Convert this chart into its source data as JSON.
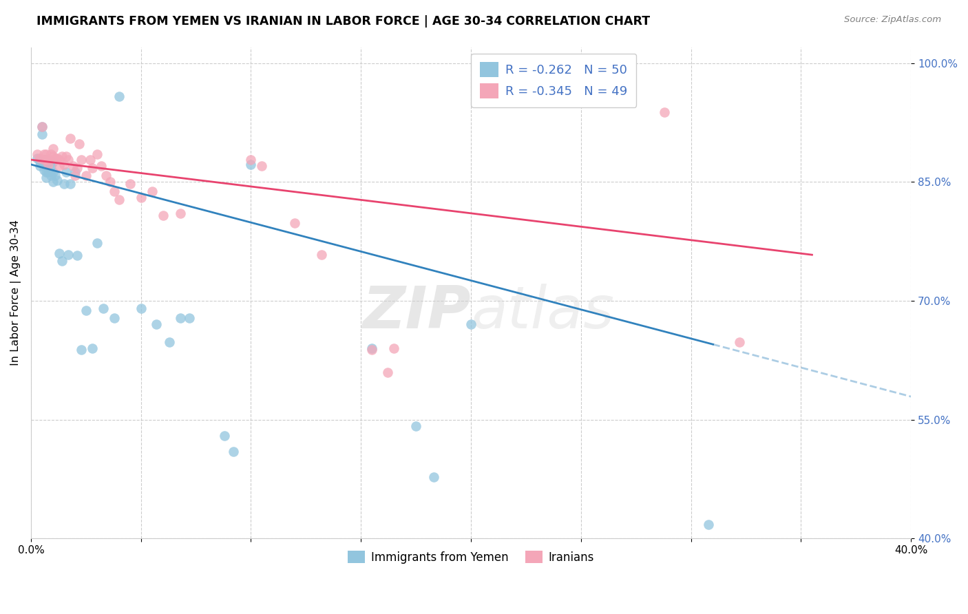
{
  "title": "IMMIGRANTS FROM YEMEN VS IRANIAN IN LABOR FORCE | AGE 30-34 CORRELATION CHART",
  "source": "Source: ZipAtlas.com",
  "ylabel": "In Labor Force | Age 30-34",
  "xlim": [
    0.0,
    0.4
  ],
  "ylim": [
    0.4,
    1.02
  ],
  "yticks": [
    0.4,
    0.55,
    0.7,
    0.85,
    1.0
  ],
  "xticks": [
    0.0,
    0.05,
    0.1,
    0.15,
    0.2,
    0.25,
    0.3,
    0.35,
    0.4
  ],
  "legend_r_blue": "-0.262",
  "legend_n_blue": "50",
  "legend_r_pink": "-0.345",
  "legend_n_pink": "49",
  "blue_color": "#92c5de",
  "pink_color": "#f4a6b8",
  "blue_line_color": "#3182bd",
  "pink_line_color": "#e8436e",
  "blue_line_x0": 0.0,
  "blue_line_y0": 0.872,
  "blue_line_x1": 0.31,
  "blue_line_y1": 0.645,
  "blue_line_solid_end": 0.31,
  "blue_line_dash_end": 0.4,
  "pink_line_x0": 0.0,
  "pink_line_y0": 0.878,
  "pink_line_x1": 0.355,
  "pink_line_y1": 0.758,
  "watermark_zip": "ZIP",
  "watermark_atlas": "atlas",
  "blue_scatter_x": [
    0.003,
    0.004,
    0.004,
    0.005,
    0.005,
    0.005,
    0.006,
    0.006,
    0.006,
    0.007,
    0.007,
    0.007,
    0.007,
    0.008,
    0.008,
    0.009,
    0.009,
    0.01,
    0.01,
    0.01,
    0.011,
    0.012,
    0.013,
    0.014,
    0.015,
    0.016,
    0.017,
    0.018,
    0.02,
    0.021,
    0.023,
    0.025,
    0.028,
    0.03,
    0.033,
    0.038,
    0.04,
    0.05,
    0.057,
    0.063,
    0.068,
    0.072,
    0.088,
    0.092,
    0.1,
    0.155,
    0.175,
    0.183,
    0.2,
    0.308
  ],
  "blue_scatter_y": [
    0.88,
    0.875,
    0.87,
    0.92,
    0.91,
    0.875,
    0.878,
    0.872,
    0.865,
    0.878,
    0.87,
    0.862,
    0.855,
    0.875,
    0.862,
    0.87,
    0.858,
    0.875,
    0.862,
    0.85,
    0.858,
    0.852,
    0.76,
    0.75,
    0.848,
    0.862,
    0.758,
    0.848,
    0.862,
    0.757,
    0.638,
    0.688,
    0.64,
    0.773,
    0.69,
    0.678,
    0.958,
    0.69,
    0.67,
    0.648,
    0.678,
    0.678,
    0.53,
    0.51,
    0.872,
    0.64,
    0.542,
    0.478,
    0.67,
    0.418
  ],
  "pink_scatter_x": [
    0.003,
    0.004,
    0.005,
    0.006,
    0.006,
    0.007,
    0.007,
    0.008,
    0.008,
    0.009,
    0.01,
    0.01,
    0.011,
    0.012,
    0.013,
    0.013,
    0.014,
    0.015,
    0.016,
    0.017,
    0.018,
    0.019,
    0.02,
    0.021,
    0.022,
    0.023,
    0.025,
    0.027,
    0.028,
    0.03,
    0.032,
    0.034,
    0.036,
    0.038,
    0.04,
    0.045,
    0.05,
    0.055,
    0.06,
    0.068,
    0.1,
    0.105,
    0.12,
    0.132,
    0.155,
    0.162,
    0.165,
    0.288,
    0.322
  ],
  "pink_scatter_y": [
    0.885,
    0.88,
    0.92,
    0.885,
    0.878,
    0.885,
    0.878,
    0.878,
    0.872,
    0.885,
    0.892,
    0.882,
    0.88,
    0.88,
    0.878,
    0.87,
    0.882,
    0.872,
    0.882,
    0.878,
    0.905,
    0.87,
    0.858,
    0.868,
    0.898,
    0.878,
    0.858,
    0.878,
    0.868,
    0.885,
    0.87,
    0.858,
    0.85,
    0.838,
    0.828,
    0.848,
    0.83,
    0.838,
    0.808,
    0.81,
    0.878,
    0.87,
    0.798,
    0.758,
    0.638,
    0.61,
    0.64,
    0.938,
    0.648
  ]
}
